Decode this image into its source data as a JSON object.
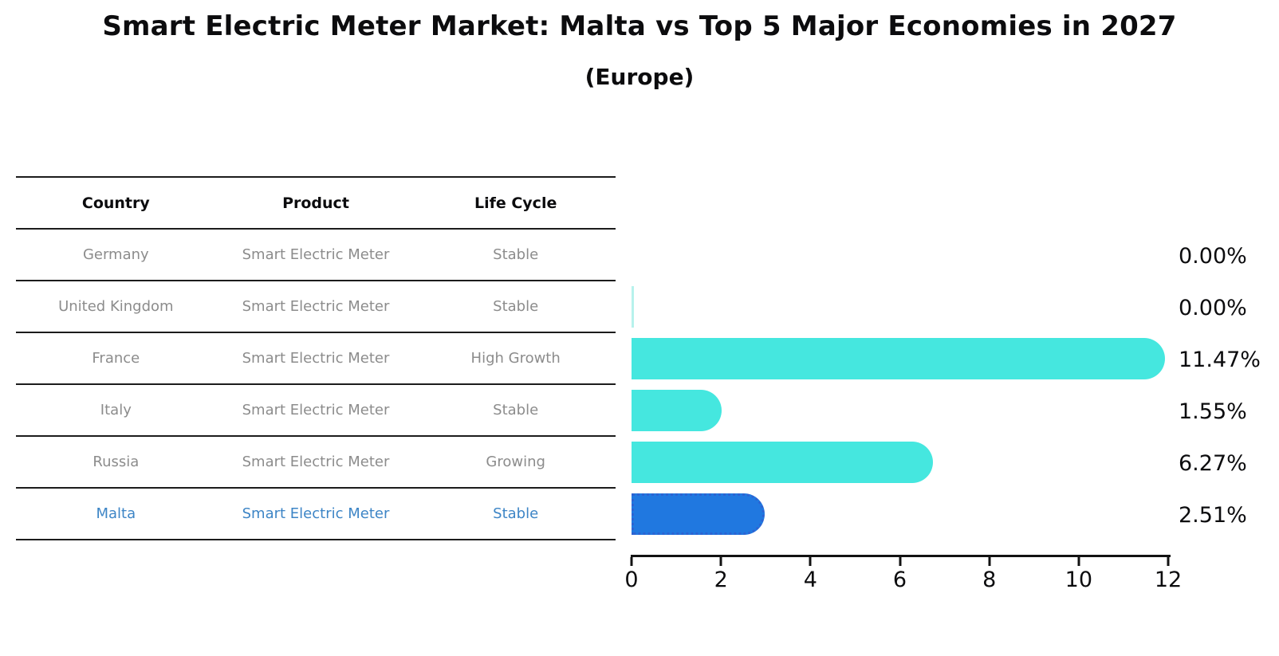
{
  "title": "Smart Electric Meter Market: Malta vs Top 5 Major Economies in 2027",
  "subtitle": "(Europe)",
  "table": {
    "headers": [
      "Country",
      "Product",
      "Life Cycle"
    ],
    "rows": [
      {
        "country": "Germany",
        "product": "Smart Electric Meter",
        "life_cycle": "Stable",
        "highlight": false
      },
      {
        "country": "United Kingdom",
        "product": "Smart Electric Meter",
        "life_cycle": "Stable",
        "highlight": false
      },
      {
        "country": "France",
        "product": "Smart Electric Meter",
        "life_cycle": "High Growth",
        "highlight": false
      },
      {
        "country": "Italy",
        "product": "Smart Electric Meter",
        "life_cycle": "Stable",
        "highlight": false
      },
      {
        "country": "Russia",
        "product": "Smart Electric Meter",
        "life_cycle": "Growing",
        "highlight": false
      },
      {
        "country": "Malta",
        "product": "Smart Electric Meter",
        "life_cycle": "Stable",
        "highlight": true
      }
    ]
  },
  "chart_data": {
    "type": "bar",
    "orientation": "horizontal",
    "title": "Smart Electric Meter Market: Malta vs Top 5 Major Economies in 2027 (Europe)",
    "categories": [
      "Germany",
      "United Kingdom",
      "France",
      "Italy",
      "Russia",
      "Malta"
    ],
    "values": [
      0.0,
      0.0,
      11.47,
      1.55,
      6.27,
      2.51
    ],
    "value_labels": [
      "0.00%",
      "0.00%",
      "11.47%",
      "1.55%",
      "6.27%",
      "2.51%"
    ],
    "x_ticks": [
      0,
      2,
      4,
      6,
      8,
      10,
      12
    ],
    "xlim": [
      0,
      12
    ],
    "grid": false,
    "legend": false,
    "bar_color": "#45e7df",
    "highlight_bar_color": "#2078e0",
    "highlight_index": 5,
    "hairline_index": 1,
    "highlight_text_color": "#3d85c6"
  }
}
